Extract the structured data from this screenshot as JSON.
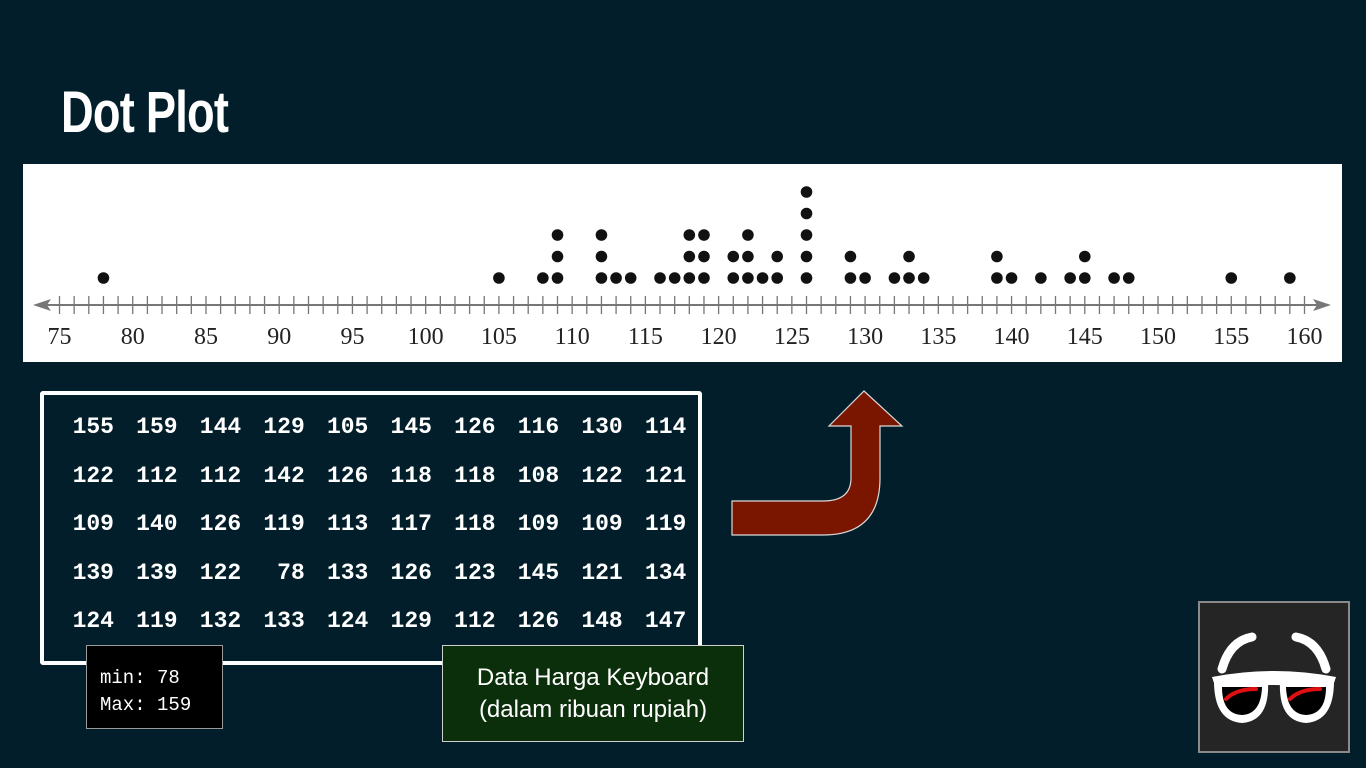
{
  "slide": {
    "title": "Dot Plot"
  },
  "chart_data": {
    "type": "scatter",
    "title": "",
    "xlabel": "",
    "ylabel": "",
    "xlim": [
      75,
      160
    ],
    "x_tick_labels": [
      "75",
      "80",
      "85",
      "90",
      "95",
      "100",
      "105",
      "110",
      "115",
      "120",
      "125",
      "130",
      "135",
      "140",
      "145",
      "150",
      "155",
      "160"
    ],
    "x_tick_values": [
      75,
      80,
      85,
      90,
      95,
      100,
      105,
      110,
      115,
      120,
      125,
      130,
      135,
      140,
      145,
      150,
      155,
      160
    ],
    "values": [
      155,
      159,
      144,
      129,
      105,
      145,
      126,
      116,
      130,
      114,
      122,
      112,
      112,
      142,
      126,
      118,
      118,
      108,
      122,
      121,
      109,
      140,
      126,
      119,
      113,
      117,
      118,
      109,
      109,
      119,
      139,
      139,
      122,
      78,
      133,
      126,
      123,
      145,
      121,
      134,
      124,
      119,
      132,
      133,
      124,
      129,
      112,
      126,
      148,
      147
    ],
    "grid": false,
    "legend": "none"
  },
  "data_table": {
    "rows": [
      [
        "155",
        "159",
        "144",
        "129",
        "105",
        "145",
        "126",
        "116",
        "130",
        "114"
      ],
      [
        "122",
        "112",
        "112",
        "142",
        "126",
        "118",
        "118",
        "108",
        "122",
        "121"
      ],
      [
        "109",
        "140",
        "126",
        "119",
        "113",
        "117",
        "118",
        "109",
        "109",
        "119"
      ],
      [
        "139",
        "139",
        "122",
        "78",
        "133",
        "126",
        "123",
        "145",
        "121",
        "134"
      ],
      [
        "124",
        "119",
        "132",
        "133",
        "124",
        "129",
        "112",
        "126",
        "148",
        "147"
      ]
    ]
  },
  "summary": {
    "min_text": "min: 78",
    "max_text": "Max: 159"
  },
  "caption": {
    "line1": "Data Harga Keyboard",
    "line2": "(dalam ribuan rupiah)"
  },
  "colors": {
    "background": "#011e2a",
    "arrow": "#7a1600",
    "caption_bg": "#0b2e0b"
  },
  "icons": {
    "arrow": "curved-up-arrow-icon",
    "logo": "glasses-logo-icon"
  }
}
